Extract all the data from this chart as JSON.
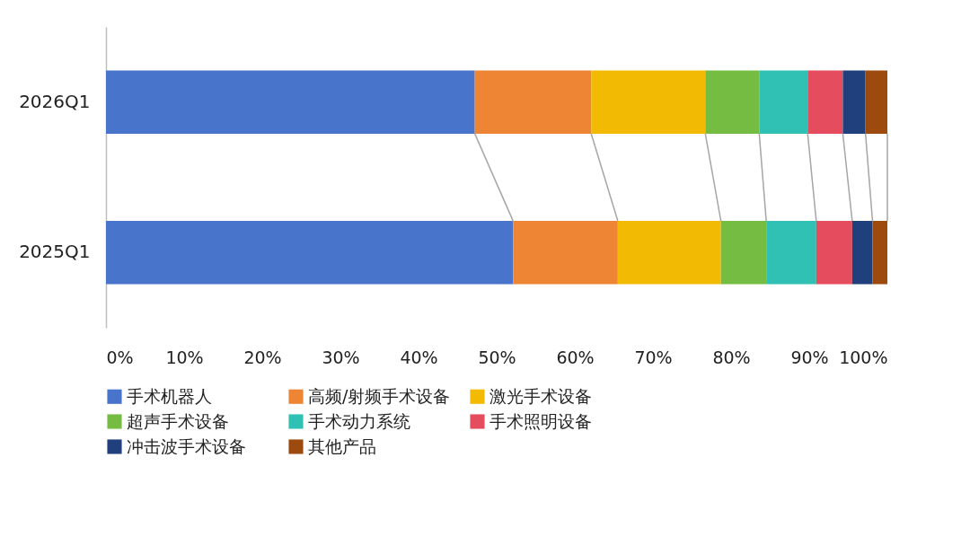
{
  "chart_data": {
    "type": "bar",
    "orientation": "horizontal",
    "stacked": true,
    "categories": [
      "2026Q1",
      "2025Q1"
    ],
    "series": [
      {
        "name": "手术机器人",
        "color": "#4874cb",
        "values": [
          47.2,
          52.1
        ]
      },
      {
        "name": "高频/射频手术设备",
        "color": "#ee8535",
        "values": [
          14.9,
          13.4
        ]
      },
      {
        "name": "激光手术设备",
        "color": "#f2ba02",
        "values": [
          14.6,
          13.2
        ]
      },
      {
        "name": "超声手术设备",
        "color": "#75bd42",
        "values": [
          6.9,
          5.8
        ]
      },
      {
        "name": "手术动力系统",
        "color": "#30c0b4",
        "values": [
          6.2,
          6.4
        ]
      },
      {
        "name": "手术照明设备",
        "color": "#e54c5e",
        "values": [
          4.5,
          4.6
        ]
      },
      {
        "name": "冲击波手术设备",
        "color": "#203f7d",
        "values": [
          2.9,
          2.6
        ]
      },
      {
        "name": "其他产品",
        "color": "#9c4a0d",
        "values": [
          2.8,
          1.9
        ]
      }
    ],
    "xlim": [
      0,
      100
    ],
    "xticks": [
      {
        "value": 0,
        "label": "0%"
      },
      {
        "value": 10,
        "label": "10%"
      },
      {
        "value": 20,
        "label": "20%"
      },
      {
        "value": 30,
        "label": "30%"
      },
      {
        "value": 40,
        "label": "40%"
      },
      {
        "value": 50,
        "label": "50%"
      },
      {
        "value": 60,
        "label": "60%"
      },
      {
        "value": 70,
        "label": "70%"
      },
      {
        "value": 80,
        "label": "80%"
      },
      {
        "value": 90,
        "label": "90%"
      },
      {
        "value": 100,
        "label": "100%"
      }
    ],
    "grid": false,
    "legend": "bottom"
  }
}
